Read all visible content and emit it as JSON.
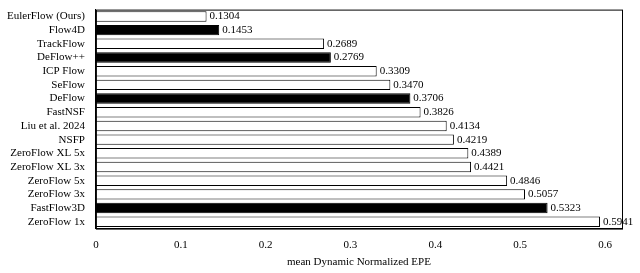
{
  "chart_data": {
    "type": "bar",
    "orientation": "horizontal",
    "x_label": "mean Dynamic Normalized EPE",
    "categories": [
      "EulerFlow (Ours)",
      "Flow4D",
      "TrackFlow",
      "DeFlow++",
      "ICP Flow",
      "SeFlow",
      "DeFlow",
      "FastNSF",
      "Liu et al. 2024",
      "NSFP",
      "ZeroFlow XL 5x",
      "ZeroFlow XL 3x",
      "ZeroFlow 5x",
      "ZeroFlow 3x",
      "FastFlow3D",
      "ZeroFlow 1x"
    ],
    "values": [
      0.1304,
      0.1453,
      0.2689,
      0.2769,
      0.3309,
      0.347,
      0.3706,
      0.3826,
      0.4134,
      0.4219,
      0.4389,
      0.4421,
      0.4846,
      0.5057,
      0.5323,
      0.5941
    ],
    "value_labels": [
      "0.1304",
      "0.1453",
      "0.2689",
      "0.2769",
      "0.3309",
      "0.3470",
      "0.3706",
      "0.3826",
      "0.4134",
      "0.4219",
      "0.4389",
      "0.4421",
      "0.4846",
      "0.5057",
      "0.5323",
      "0.5941"
    ],
    "colors": [
      "#ffffff",
      "#000000",
      "#ffffff",
      "#000000",
      "#ffffff",
      "#ffffff",
      "#000000",
      "#ffffff",
      "#ffffff",
      "#ffffff",
      "#ffffff",
      "#ffffff",
      "#ffffff",
      "#ffffff",
      "#000000",
      "#ffffff"
    ],
    "data_labels": true,
    "xlim": [
      0,
      0.62
    ],
    "xticks": [
      0,
      0.1,
      0.2,
      0.3,
      0.4,
      0.5,
      0.6
    ],
    "grid": false
  }
}
